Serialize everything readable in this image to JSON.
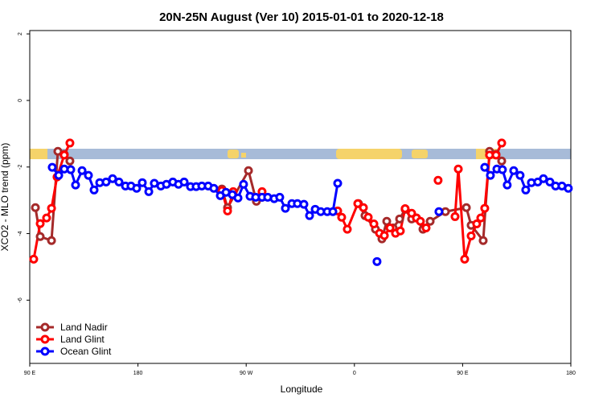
{
  "chart_data": {
    "type": "line",
    "title": "20N-25N August (Ver 10)   2015-01-01 to 2020-12-18",
    "x_label": "Longitude",
    "y_label": "XCO2 - MLO trend (ppm)",
    "xlim": [
      90,
      540
    ],
    "ylim": [
      -7.9,
      2.1
    ],
    "xticks": [
      {
        "value": 90,
        "label": "90 E"
      },
      {
        "value": 180,
        "label": "180"
      },
      {
        "value": 270,
        "label": "90 W"
      },
      {
        "value": 360,
        "label": "0"
      },
      {
        "value": 450,
        "label": "90 E"
      },
      {
        "value": 540,
        "label": "180"
      }
    ],
    "yticks": [
      2,
      0,
      -2,
      -4,
      -6
    ],
    "legend": "bottom-left",
    "series": [
      {
        "name": "Land Nadir",
        "color": "#a52a2a",
        "x": [
          94.7,
          98.7,
          108.1,
          113.4,
          118.7,
          123.4,
          null,
          249.8,
          254.5,
          271.9,
          278.5,
          283.2,
          null,
          363.4,
          368.8,
          377.5,
          382.9,
          386.9,
          392.2,
          397.6,
          402.2,
          407.6,
          411.6,
          417.0,
          423.0,
          435.7,
          453.1,
          457.1,
          467.1,
          472.4,
          477.8,
          482.5
        ],
        "values": [
          -3.22,
          -4.09,
          -4.21,
          -1.53,
          -1.62,
          -1.82,
          null,
          -2.66,
          -3.22,
          -2.11,
          -3.03,
          -2.91,
          null,
          -3.1,
          -3.46,
          -3.87,
          -4.16,
          -3.63,
          -3.83,
          -3.56,
          -3.27,
          -3.56,
          -3.53,
          -3.87,
          -3.63,
          -3.34,
          -3.22,
          -3.75,
          -4.21,
          -1.53,
          -1.62,
          -1.82
        ]
      },
      {
        "name": "Land Glint",
        "color": "#ff0000",
        "x": [
          93.3,
          98.7,
          104.0,
          108.1,
          112.7,
          118.7,
          123.4,
          null,
          249.8,
          254.5,
          259.2,
          null,
          283.2,
          null,
          346.1,
          349.4,
          354.1,
          362.8,
          367.5,
          371.5,
          376.2,
          380.9,
          384.9,
          389.6,
          394.2,
          398.2,
          402.2,
          407.6,
          411.6,
          414.9,
          419.6,
          null,
          429.6,
          null,
          443.7,
          446.4,
          451.7,
          457.1,
          461.7,
          465.1,
          468.4,
          472.4,
          477.8,
          482.5
        ],
        "values": [
          -4.77,
          -3.7,
          -3.53,
          -3.24,
          -2.3,
          -1.64,
          -1.28,
          null,
          -2.71,
          -3.32,
          -2.74,
          null,
          -2.74,
          null,
          -3.32,
          -3.51,
          -3.87,
          -3.1,
          -3.22,
          -3.51,
          -3.71,
          -3.99,
          -4.06,
          -3.83,
          -3.99,
          -3.92,
          -3.25,
          -3.39,
          -3.53,
          -3.63,
          -3.83,
          null,
          -2.4,
          null,
          -3.49,
          -2.06,
          -4.77,
          -4.07,
          -3.71,
          -3.53,
          -3.24,
          -1.64,
          -1.64,
          -1.28
        ]
      },
      {
        "name": "Ocean Glint",
        "color": "#0000ff",
        "x": [
          108.7,
          114.1,
          118.7,
          124.1,
          128.1,
          133.5,
          138.8,
          143.5,
          148.2,
          153.5,
          158.9,
          164.2,
          169.6,
          174.2,
          178.9,
          183.6,
          189.0,
          193.6,
          199.0,
          203.7,
          209.0,
          213.7,
          218.4,
          223.7,
          228.4,
          233.1,
          238.4,
          243.1,
          248.5,
          253.2,
          258.5,
          263.2,
          267.8,
          273.2,
          277.9,
          283.2,
          287.9,
          293.3,
          297.9,
          302.6,
          308.0,
          312.6,
          318.0,
          322.7,
          327.4,
          332.0,
          337.4,
          342.1,
          346.1,
          null,
          378.8,
          null,
          430.3,
          null,
          468.4,
          473.1,
          478.5,
          483.1,
          487.1,
          492.5,
          497.8,
          502.5,
          507.2,
          512.5,
          517.2,
          522.6,
          527.3,
          532.6,
          537.9
        ],
        "values": [
          -2.01,
          -2.25,
          -2.06,
          -2.08,
          -2.54,
          -2.11,
          -2.25,
          -2.69,
          -2.47,
          -2.45,
          -2.35,
          -2.45,
          -2.57,
          -2.57,
          -2.64,
          -2.47,
          -2.74,
          -2.49,
          -2.57,
          -2.52,
          -2.45,
          -2.52,
          -2.45,
          -2.59,
          -2.59,
          -2.57,
          -2.57,
          -2.64,
          -2.86,
          -2.76,
          -2.83,
          -2.93,
          -2.52,
          -2.88,
          -2.91,
          -2.91,
          -2.91,
          -2.95,
          -2.91,
          -3.24,
          -3.1,
          -3.1,
          -3.12,
          -3.46,
          -3.27,
          -3.34,
          -3.34,
          -3.34,
          -2.49,
          null,
          -4.84,
          null,
          -3.34,
          null,
          -2.01,
          -2.25,
          -2.06,
          -2.08,
          -2.54,
          -2.11,
          -2.25,
          -2.69,
          -2.47,
          -2.45,
          -2.35,
          -2.45,
          -2.57,
          -2.57,
          -2.64
        ]
      }
    ]
  }
}
